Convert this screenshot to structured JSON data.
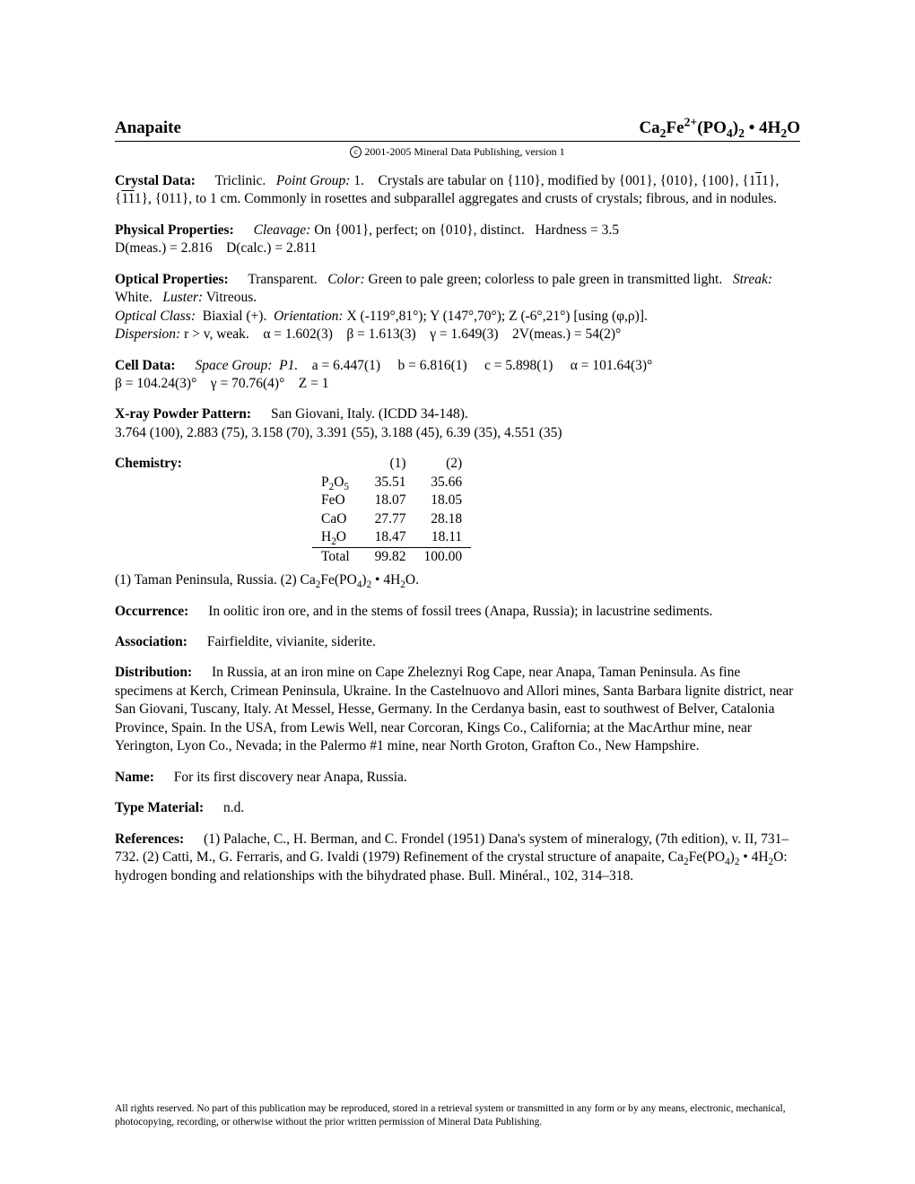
{
  "header": {
    "mineral_name": "Anapaite",
    "formula_html": "Ca<sub>2</sub>Fe<sup>2+</sup>(PO<sub>4</sub>)<sub>2</sub>&nbsp;•&nbsp;4H<sub>2</sub>O",
    "copyright": "2001-2005 Mineral Data Publishing, version 1"
  },
  "crystal_data": {
    "label": "Crystal Data:",
    "system": "Triclinic.",
    "point_group_label": "Point Group:",
    "point_group": "1.",
    "body_html": "Crystals are tabular on {110}, modified by {001}, {010}, {100}, {1<span class='bar'>1</span>1}, {<span class='bar'>11</span>1}, {011}, to 1 cm. Commonly in rosettes and subparallel aggregates and crusts of crystals; fibrous, and in nodules."
  },
  "physical": {
    "label": "Physical Properties:",
    "cleavage_label": "Cleavage:",
    "cleavage": "On {001}, perfect; on {010}, distinct.",
    "hardness": "Hardness = 3.5",
    "dmeas": "D(meas.) = 2.816",
    "dcalc": "D(calc.) = 2.811"
  },
  "optical": {
    "label": "Optical Properties:",
    "transparency": "Transparent.",
    "color_label": "Color:",
    "color": "Green to pale green; colorless to pale green in transmitted light.",
    "streak_label": "Streak:",
    "streak": "White.",
    "luster_label": "Luster:",
    "luster": "Vitreous.",
    "optclass_label": "Optical Class:",
    "optclass": "Biaxial (+).",
    "orientation_label": "Orientation:",
    "orientation_html": "X (-119°,81°); Y (147°,70°); Z (-6°,21°) [using (&phi;,&rho;)].",
    "dispersion_label": "Dispersion:",
    "dispersion": "r > v, weak.",
    "alpha": "α = 1.602(3)",
    "beta": "β = 1.613(3)",
    "gamma": "γ = 1.649(3)",
    "twoV": "2V(meas.) = 54(2)°"
  },
  "cell": {
    "label": "Cell Data:",
    "spacegroup_label": "Space Group:",
    "spacegroup": "P1.",
    "a": "a = 6.447(1)",
    "b": "b = 6.816(1)",
    "c": "c = 5.898(1)",
    "alpha": "α = 101.64(3)°",
    "beta": "β = 104.24(3)°",
    "gamma": "γ = 70.76(4)°",
    "z": "Z = 1"
  },
  "xray": {
    "label": "X-ray Powder Pattern:",
    "locality": "San Giovani, Italy. (ICDD 34-148).",
    "lines": "3.764 (100), 2.883 (75), 3.158 (70), 3.391 (55), 3.188 (45), 6.39 (35), 4.551 (35)"
  },
  "chemistry": {
    "label": "Chemistry:",
    "columns": [
      "(1)",
      "(2)"
    ],
    "rows": [
      {
        "name_html": "P<sub>2</sub>O<sub>5</sub>",
        "v1": "35.51",
        "v2": "35.66"
      },
      {
        "name_html": "FeO",
        "v1": "18.07",
        "v2": "18.05"
      },
      {
        "name_html": "CaO",
        "v1": "27.77",
        "v2": "28.18"
      },
      {
        "name_html": "H<sub>2</sub>O",
        "v1": "18.47",
        "v2": "18.11"
      }
    ],
    "total_label": "Total",
    "total_v1": "99.82",
    "total_v2": "100.00",
    "footnote_html": "(1) Taman Peninsula, Russia. (2) Ca<sub>2</sub>Fe(PO<sub>4</sub>)<sub>2</sub>&nbsp;•&nbsp;4H<sub>2</sub>O."
  },
  "occurrence": {
    "label": "Occurrence:",
    "text": "In oolitic iron ore, and in the stems of fossil trees (Anapa, Russia); in lacustrine sediments."
  },
  "association": {
    "label": "Association:",
    "text": "Fairfieldite, vivianite, siderite."
  },
  "distribution": {
    "label": "Distribution:",
    "text": "In Russia, at an iron mine on Cape Zheleznyi Rog Cape, near Anapa, Taman Peninsula. As fine specimens at Kerch, Crimean Peninsula, Ukraine. In the Castelnuovo and Allori mines, Santa Barbara lignite district, near San Giovani, Tuscany, Italy. At Messel, Hesse, Germany. In the Cerdanya basin, east to southwest of Belver, Catalonia Province, Spain. In the USA, from Lewis Well, near Corcoran, Kings Co., California; at the MacArthur mine, near Yerington, Lyon Co., Nevada; in the Palermo #1 mine, near North Groton, Grafton Co., New Hampshire."
  },
  "name": {
    "label": "Name:",
    "text": "For its first discovery near Anapa, Russia."
  },
  "type_material": {
    "label": "Type Material:",
    "text": "n.d."
  },
  "references": {
    "label": "References:",
    "text_html": "(1) Palache, C., H. Berman, and C. Frondel (1951) Dana's system of mineralogy, (7th edition), v. II, 731–732. (2) Catti, M., G. Ferraris, and G. Ivaldi (1979) Refinement of the crystal structure of anapaite, Ca<sub>2</sub>Fe(PO<sub>4</sub>)<sub>2</sub>&nbsp;•&nbsp;4H<sub>2</sub>O: hydrogen bonding and relationships with the bihydrated phase. Bull. Minéral., 102, 314–318."
  },
  "footer": "All rights reserved. No part of this publication may be reproduced, stored in a retrieval system or transmitted in any form or by any means, electronic, mechanical, photocopying, recording, or otherwise without the prior written permission of Mineral Data Publishing."
}
